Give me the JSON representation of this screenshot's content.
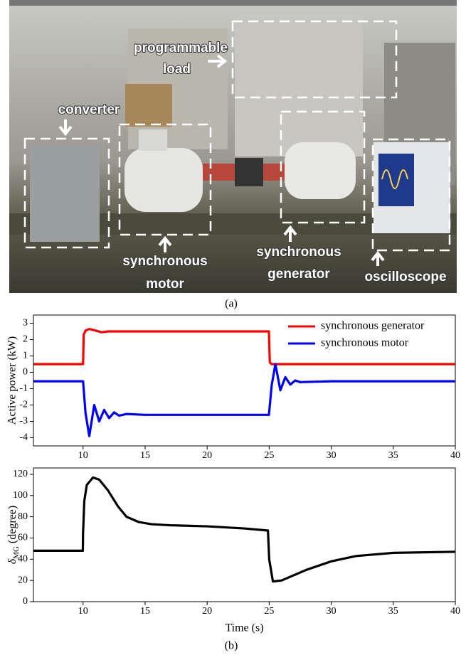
{
  "photo": {
    "labels": [
      {
        "lines": [
          "programmable",
          "load"
        ]
      },
      {
        "lines": [
          "converter"
        ]
      },
      {
        "lines": [
          "synchronous",
          "motor"
        ]
      },
      {
        "lines": [
          "synchronous",
          "generator"
        ]
      },
      {
        "lines": [
          "oscilloscope"
        ]
      }
    ],
    "caption": "(a)"
  },
  "caption_b": "(b)",
  "chart_data": [
    {
      "type": "line",
      "y_label": "Active power (kW)",
      "xlim": [
        6,
        40
      ],
      "xticks": [
        10,
        15,
        20,
        25,
        30,
        35,
        40
      ],
      "ylim": [
        -4.5,
        3.5
      ],
      "yticks": [
        3,
        2,
        1,
        0,
        -1,
        -2,
        -3,
        -4
      ],
      "legend": "upper right",
      "series": [
        {
          "name": "synchronous generator",
          "color": "#ff0000",
          "x": [
            6,
            10,
            10.05,
            10.2,
            10.5,
            11,
            11.5,
            12,
            15,
            20,
            24.98,
            25.05,
            25.2,
            26,
            30,
            40
          ],
          "values": [
            0.5,
            0.5,
            2.3,
            2.55,
            2.65,
            2.55,
            2.45,
            2.5,
            2.5,
            2.5,
            2.5,
            0.6,
            0.5,
            0.5,
            0.5,
            0.5
          ]
        },
        {
          "name": "synchronous motor",
          "color": "#0000ff",
          "x": [
            6,
            10,
            10.2,
            10.5,
            10.9,
            11.3,
            11.7,
            12.1,
            12.5,
            12.9,
            13.5,
            15,
            20,
            24.98,
            25.2,
            25.5,
            25.9,
            26.3,
            26.7,
            27.1,
            27.5,
            30,
            40
          ],
          "values": [
            -0.55,
            -0.55,
            -2.5,
            -3.9,
            -2.0,
            -3.0,
            -2.3,
            -2.8,
            -2.45,
            -2.65,
            -2.55,
            -2.6,
            -2.6,
            -2.6,
            -0.8,
            0.5,
            -1.1,
            -0.3,
            -0.75,
            -0.5,
            -0.6,
            -0.55,
            -0.55
          ]
        }
      ]
    },
    {
      "type": "line",
      "x_label": "Time (s)",
      "y_label_parts": [
        "δ",
        "MG",
        " (degree)"
      ],
      "xlim": [
        6,
        40
      ],
      "xticks": [
        10,
        15,
        20,
        25,
        30,
        35,
        40
      ],
      "ylim": [
        0,
        126
      ],
      "yticks": [
        0,
        20,
        40,
        60,
        80,
        100,
        120
      ],
      "series": [
        {
          "color": "#000000",
          "x": [
            6,
            9.98,
            10,
            10.1,
            10.3,
            10.8,
            11.3,
            12,
            12.8,
            13.5,
            14.5,
            15.5,
            17,
            20,
            23,
            24.9,
            25,
            25.3,
            26,
            28,
            30,
            32,
            35,
            40
          ],
          "values": [
            48,
            48,
            65,
            95,
            110,
            117,
            115,
            105,
            90,
            80,
            75,
            73,
            72,
            71,
            69,
            67,
            40,
            19,
            20,
            30,
            38,
            43,
            46,
            47
          ]
        }
      ]
    }
  ]
}
